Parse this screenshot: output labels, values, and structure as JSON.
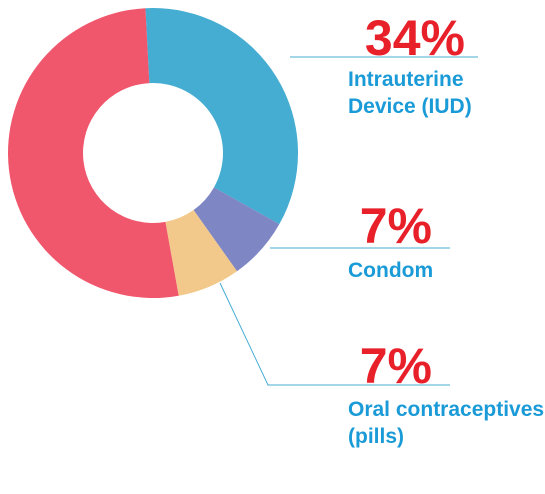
{
  "chart_data": {
    "type": "donut",
    "categories": [
      "Intrauterine Device (IUD)",
      "Condom",
      "Oral contraceptives (pills)",
      null
    ],
    "values": [
      34,
      7,
      7,
      52
    ],
    "value_labels": [
      "34%",
      "7%",
      "7%",
      null
    ],
    "colors": [
      "#45acd2",
      "#7f86c4",
      "#f2c98a",
      "#f0566c"
    ]
  }
}
